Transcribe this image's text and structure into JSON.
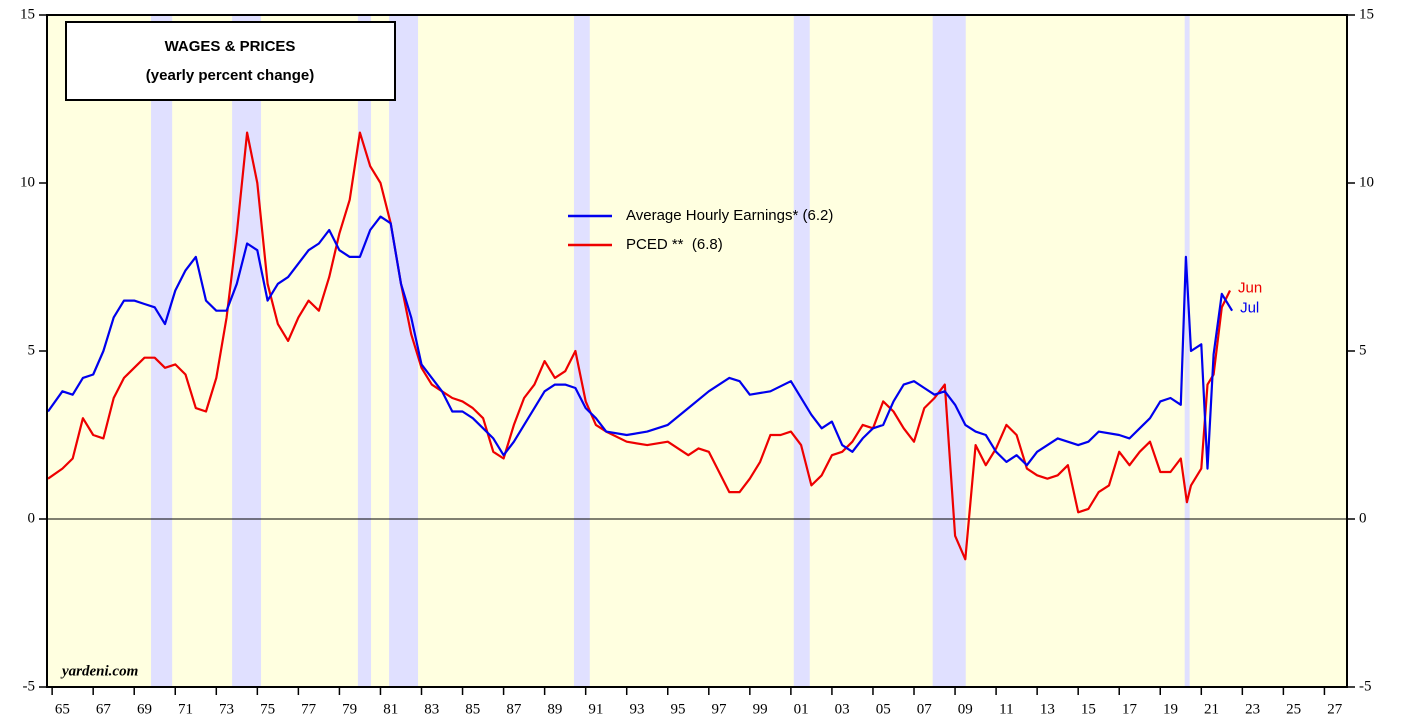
{
  "chart_data": {
    "type": "line",
    "title": "WAGES & PRICES",
    "subtitle": "(yearly percent change)",
    "source": "yardeni.com",
    "xlim": [
      1964.75,
      2028.1
    ],
    "ylim": [
      -5,
      15
    ],
    "y2lim": [
      -5,
      15
    ],
    "xticks": [
      {
        "value": 1965,
        "label": "65"
      },
      {
        "value": 1967,
        "label": "67"
      },
      {
        "value": 1969,
        "label": "69"
      },
      {
        "value": 1971,
        "label": "71"
      },
      {
        "value": 1973,
        "label": "73"
      },
      {
        "value": 1975,
        "label": "75"
      },
      {
        "value": 1977,
        "label": "77"
      },
      {
        "value": 1979,
        "label": "79"
      },
      {
        "value": 1981,
        "label": "81"
      },
      {
        "value": 1983,
        "label": "83"
      },
      {
        "value": 1985,
        "label": "85"
      },
      {
        "value": 1987,
        "label": "87"
      },
      {
        "value": 1989,
        "label": "89"
      },
      {
        "value": 1991,
        "label": "91"
      },
      {
        "value": 1993,
        "label": "93"
      },
      {
        "value": 1995,
        "label": "95"
      },
      {
        "value": 1997,
        "label": "97"
      },
      {
        "value": 1999,
        "label": "99"
      },
      {
        "value": 2001,
        "label": "01"
      },
      {
        "value": 2003,
        "label": "03"
      },
      {
        "value": 2005,
        "label": "05"
      },
      {
        "value": 2007,
        "label": "07"
      },
      {
        "value": 2009,
        "label": "09"
      },
      {
        "value": 2011,
        "label": "11"
      },
      {
        "value": 2013,
        "label": "13"
      },
      {
        "value": 2015,
        "label": "15"
      },
      {
        "value": 2017,
        "label": "17"
      },
      {
        "value": 2019,
        "label": "19"
      },
      {
        "value": 2021,
        "label": "21"
      },
      {
        "value": 2023,
        "label": "23"
      },
      {
        "value": 2025,
        "label": "25"
      },
      {
        "value": 2027,
        "label": "27"
      }
    ],
    "yticks": [
      -5,
      0,
      5,
      10,
      15
    ],
    "y2ticks": [
      -5,
      0,
      5,
      10,
      15
    ],
    "background_color": "#ffffe0",
    "shade_color": "#e0e0ff",
    "shaded_periods": [
      [
        1969.82,
        1970.85
      ],
      [
        1973.77,
        1975.18
      ],
      [
        1979.9,
        1980.54
      ],
      [
        1981.42,
        1982.83
      ],
      [
        1990.43,
        1991.2
      ],
      [
        2001.14,
        2001.92
      ],
      [
        2007.91,
        2009.52
      ],
      [
        2020.19,
        2020.43
      ]
    ],
    "series": [
      {
        "name": "Average Hourly Earnings* (6.2)",
        "color": "#0000ee",
        "end_label": "Jul",
        "x": [
          1964.8,
          1965.5,
          1966.0,
          1966.5,
          1967.0,
          1967.5,
          1968.0,
          1968.5,
          1969.0,
          1969.5,
          1970.0,
          1970.5,
          1971.0,
          1971.5,
          1972.0,
          1972.5,
          1973.0,
          1973.5,
          1974.0,
          1974.5,
          1975.0,
          1975.5,
          1976.0,
          1976.5,
          1977.0,
          1977.5,
          1978.0,
          1978.5,
          1979.0,
          1979.5,
          1980.0,
          1980.5,
          1981.0,
          1981.5,
          1982.0,
          1982.5,
          1983.0,
          1983.5,
          1984.0,
          1984.5,
          1985.0,
          1985.5,
          1986.0,
          1986.5,
          1987.0,
          1987.5,
          1988.0,
          1988.5,
          1989.0,
          1989.5,
          1990.0,
          1990.5,
          1991.0,
          1991.5,
          1992.0,
          1993.0,
          1994.0,
          1995.0,
          1996.0,
          1997.0,
          1998.0,
          1998.5,
          1999.0,
          2000.0,
          2001.0,
          2002.0,
          2002.5,
          2003.0,
          2003.5,
          2004.0,
          2004.5,
          2005.0,
          2005.5,
          2006.0,
          2006.5,
          2007.0,
          2007.5,
          2008.0,
          2008.5,
          2009.0,
          2009.5,
          2010.0,
          2010.5,
          2011.0,
          2011.5,
          2012.0,
          2012.5,
          2013.0,
          2014.0,
          2015.0,
          2015.5,
          2016.0,
          2017.0,
          2017.5,
          2018.0,
          2018.5,
          2019.0,
          2019.5,
          2020.0,
          2020.25,
          2020.5,
          2021.0,
          2021.3,
          2021.6,
          2022.0,
          2022.5
        ],
        "values": [
          3.2,
          3.8,
          3.7,
          4.2,
          4.3,
          5.0,
          6.0,
          6.5,
          6.5,
          6.4,
          6.3,
          5.8,
          6.8,
          7.4,
          7.8,
          6.5,
          6.2,
          6.2,
          7.0,
          8.2,
          8.0,
          6.5,
          7.0,
          7.2,
          7.6,
          8.0,
          8.2,
          8.6,
          8.0,
          7.8,
          7.8,
          8.6,
          9.0,
          8.8,
          7.0,
          6.0,
          4.6,
          4.2,
          3.8,
          3.2,
          3.2,
          3.0,
          2.7,
          2.4,
          1.9,
          2.3,
          2.8,
          3.3,
          3.8,
          4.0,
          4.0,
          3.9,
          3.3,
          3.0,
          2.6,
          2.5,
          2.6,
          2.8,
          3.3,
          3.8,
          4.2,
          4.1,
          3.7,
          3.8,
          4.1,
          3.1,
          2.7,
          2.9,
          2.2,
          2.0,
          2.4,
          2.7,
          2.8,
          3.5,
          4.0,
          4.1,
          3.9,
          3.7,
          3.8,
          3.4,
          2.8,
          2.6,
          2.5,
          2.0,
          1.7,
          1.9,
          1.6,
          2.0,
          2.4,
          2.2,
          2.3,
          2.6,
          2.5,
          2.4,
          2.7,
          3.0,
          3.5,
          3.6,
          3.4,
          7.8,
          5.0,
          5.2,
          1.5,
          4.9,
          6.7,
          6.2
        ]
      },
      {
        "name": "PCED **  (6.8)",
        "color": "#ee0000",
        "end_label": "Jun",
        "x": [
          1964.8,
          1965.5,
          1966.0,
          1966.5,
          1967.0,
          1967.5,
          1968.0,
          1968.5,
          1969.0,
          1969.5,
          1970.0,
          1970.5,
          1971.0,
          1971.5,
          1972.0,
          1972.5,
          1973.0,
          1973.5,
          1974.0,
          1974.5,
          1975.0,
          1975.5,
          1976.0,
          1976.5,
          1977.0,
          1977.5,
          1978.0,
          1978.5,
          1979.0,
          1979.5,
          1980.0,
          1980.5,
          1981.0,
          1981.5,
          1982.0,
          1982.5,
          1983.0,
          1983.5,
          1984.0,
          1984.5,
          1985.0,
          1985.5,
          1986.0,
          1986.5,
          1987.0,
          1987.5,
          1988.0,
          1988.5,
          1989.0,
          1989.5,
          1990.0,
          1990.5,
          1991.0,
          1991.5,
          1992.0,
          1993.0,
          1994.0,
          1995.0,
          1996.0,
          1996.5,
          1997.0,
          1997.5,
          1998.0,
          1998.5,
          1999.0,
          1999.5,
          2000.0,
          2000.5,
          2001.0,
          2001.5,
          2002.0,
          2002.5,
          2003.0,
          2003.5,
          2004.0,
          2004.5,
          2005.0,
          2005.5,
          2006.0,
          2006.5,
          2007.0,
          2007.5,
          2008.0,
          2008.5,
          2009.0,
          2009.5,
          2010.0,
          2010.5,
          2011.0,
          2011.5,
          2012.0,
          2012.5,
          2013.0,
          2013.5,
          2014.0,
          2014.5,
          2015.0,
          2015.5,
          2016.0,
          2016.5,
          2017.0,
          2017.5,
          2018.0,
          2018.5,
          2019.0,
          2019.5,
          2020.0,
          2020.3,
          2020.5,
          2021.0,
          2021.3,
          2021.6,
          2022.0,
          2022.4
        ],
        "values": [
          1.2,
          1.5,
          1.8,
          3.0,
          2.5,
          2.4,
          3.6,
          4.2,
          4.5,
          4.8,
          4.8,
          4.5,
          4.6,
          4.3,
          3.3,
          3.2,
          4.2,
          6.0,
          8.5,
          11.5,
          10.0,
          7.0,
          5.8,
          5.3,
          6.0,
          6.5,
          6.2,
          7.2,
          8.5,
          9.5,
          11.5,
          10.5,
          10.0,
          8.8,
          7.0,
          5.5,
          4.5,
          4.0,
          3.8,
          3.6,
          3.5,
          3.3,
          3.0,
          2.0,
          1.8,
          2.8,
          3.6,
          4.0,
          4.7,
          4.2,
          4.4,
          5.0,
          3.5,
          2.8,
          2.6,
          2.3,
          2.2,
          2.3,
          1.9,
          2.1,
          2.0,
          1.4,
          0.8,
          0.8,
          1.2,
          1.7,
          2.5,
          2.5,
          2.6,
          2.2,
          1.0,
          1.3,
          1.9,
          2.0,
          2.3,
          2.8,
          2.7,
          3.5,
          3.2,
          2.7,
          2.3,
          3.3,
          3.6,
          4.0,
          -0.5,
          -1.2,
          2.2,
          1.6,
          2.1,
          2.8,
          2.5,
          1.5,
          1.3,
          1.2,
          1.3,
          1.6,
          0.2,
          0.3,
          0.8,
          1.0,
          2.0,
          1.6,
          2.0,
          2.3,
          1.4,
          1.4,
          1.8,
          0.5,
          1.0,
          1.5,
          4.0,
          4.3,
          6.3,
          6.8
        ]
      }
    ]
  }
}
